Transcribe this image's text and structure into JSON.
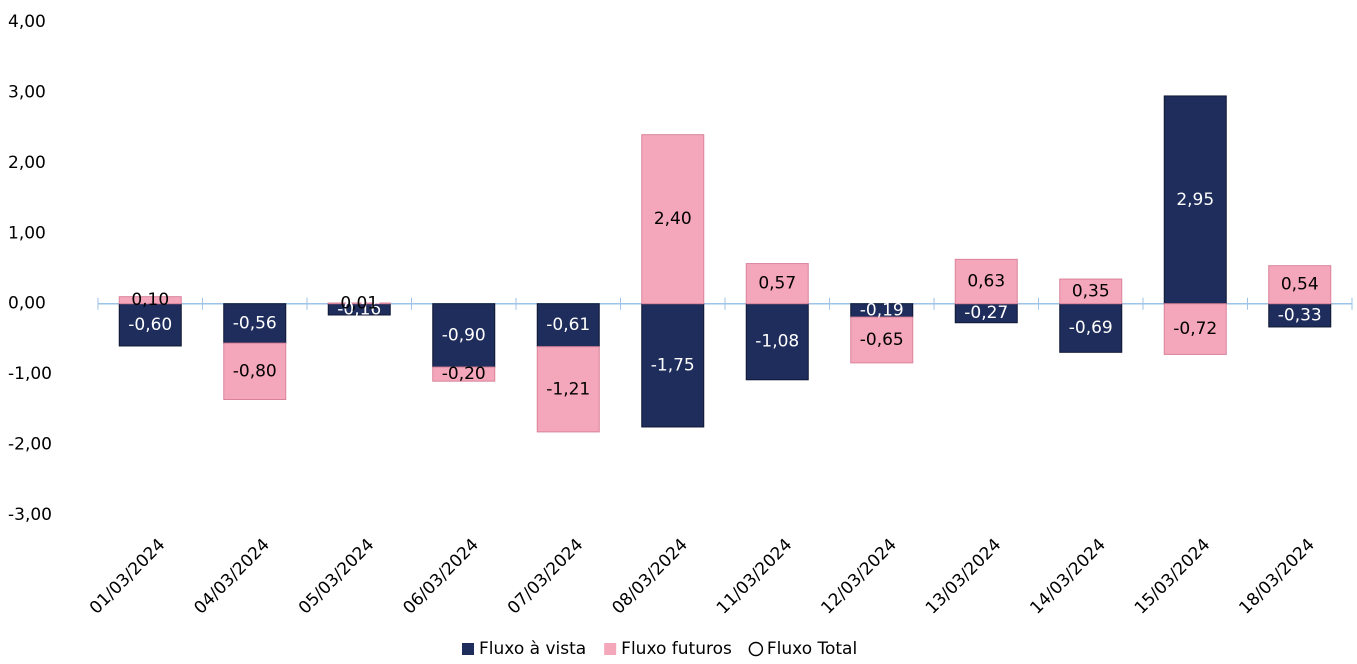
{
  "chart_data": {
    "type": "bar",
    "stacked": true,
    "categories": [
      "01/03/2024",
      "04/03/2024",
      "05/03/2024",
      "06/03/2024",
      "07/03/2024",
      "08/03/2024",
      "11/03/2024",
      "12/03/2024",
      "13/03/2024",
      "14/03/2024",
      "15/03/2024",
      "18/03/2024"
    ],
    "series": [
      {
        "name": "Fluxo à vista",
        "color": "#1f2d5c",
        "values": [
          -0.6,
          -0.56,
          -0.16,
          -0.9,
          -0.61,
          -1.75,
          -1.08,
          -0.19,
          -0.27,
          -0.69,
          2.95,
          -0.33
        ],
        "value_labels": [
          "-0,60",
          "-0,56",
          "-0,16",
          "-0,90",
          "-0,61",
          "-1,75",
          "-1,08",
          "-0,19",
          "-0,27",
          "-0,69",
          "2,95",
          "-0,33"
        ]
      },
      {
        "name": "Fluxo futuros",
        "color": "#f4a6bb",
        "values": [
          0.1,
          -0.8,
          0.01,
          -0.2,
          -1.21,
          2.4,
          0.57,
          -0.65,
          0.63,
          0.35,
          -0.72,
          0.54
        ],
        "value_labels": [
          "0,10",
          "-0,80",
          "0,01",
          "-0,20",
          "-1,21",
          "2,40",
          "0,57",
          "-0,65",
          "0,63",
          "0,35",
          "-0,72",
          "0,54"
        ]
      },
      {
        "name": "Fluxo Total",
        "type": "line",
        "values": [
          null,
          null,
          null,
          null,
          null,
          null,
          null,
          null,
          null,
          null,
          null,
          null
        ]
      }
    ],
    "ylim": [
      -3,
      4
    ],
    "yticks": [
      {
        "value": -3,
        "label": "-3,00"
      },
      {
        "value": -2,
        "label": "-2,00"
      },
      {
        "value": -1,
        "label": "-1,00"
      },
      {
        "value": 0,
        "label": "0,00"
      },
      {
        "value": 1,
        "label": "1,00"
      },
      {
        "value": 2,
        "label": "2,00"
      },
      {
        "value": 3,
        "label": "3,00"
      },
      {
        "value": 4,
        "label": "4,00"
      }
    ],
    "grid": false,
    "legend": "bottom"
  }
}
